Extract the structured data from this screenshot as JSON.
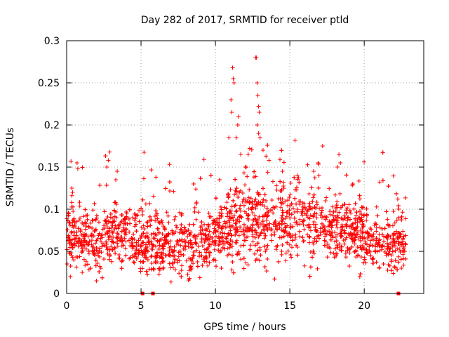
{
  "chart_data": {
    "type": "scatter",
    "title": "Day 282 of 2017, SRMTID for receiver ptld",
    "xlabel": "GPS time / hours",
    "ylabel": "SRMTID / TECUs",
    "xlim": [
      0,
      24
    ],
    "ylim": [
      0,
      0.3
    ],
    "xticks": [
      0,
      5,
      10,
      15,
      20
    ],
    "xtick_labels": [
      "0",
      "5",
      "10",
      "15",
      "20"
    ],
    "yticks": [
      0,
      0.05,
      0.1,
      0.15,
      0.2,
      0.25,
      0.3
    ],
    "ytick_labels": [
      "0",
      "0.05",
      "0.1",
      "0.15",
      "0.2",
      "0.25",
      "0.3"
    ],
    "grid": true,
    "marker": "+",
    "series_color": "#ff0000",
    "x_range_data": [
      0,
      22.8
    ],
    "baseline_trend": [
      [
        0,
        0.072
      ],
      [
        1,
        0.068
      ],
      [
        2,
        0.06
      ],
      [
        3,
        0.072
      ],
      [
        4,
        0.07
      ],
      [
        5,
        0.06
      ],
      [
        6,
        0.058
      ],
      [
        7,
        0.058
      ],
      [
        8,
        0.055
      ],
      [
        9,
        0.06
      ],
      [
        10,
        0.07
      ],
      [
        11,
        0.08
      ],
      [
        12,
        0.085
      ],
      [
        13,
        0.088
      ],
      [
        14,
        0.09
      ],
      [
        15,
        0.09
      ],
      [
        16,
        0.085
      ],
      [
        17,
        0.08
      ],
      [
        18,
        0.078
      ],
      [
        19,
        0.072
      ],
      [
        20,
        0.07
      ],
      [
        21,
        0.06
      ],
      [
        22,
        0.058
      ],
      [
        22.8,
        0.06
      ]
    ],
    "peak_points": [
      [
        0.35,
        0.125
      ],
      [
        0.4,
        0.12
      ],
      [
        0.7,
        0.155
      ],
      [
        0.75,
        0.148
      ],
      [
        2.9,
        0.168
      ],
      [
        2.8,
        0.158
      ],
      [
        2.7,
        0.15
      ],
      [
        3.4,
        0.145
      ],
      [
        3.3,
        0.135
      ],
      [
        6.0,
        0.138
      ],
      [
        10.9,
        0.185
      ],
      [
        11.05,
        0.23
      ],
      [
        11.1,
        0.215
      ],
      [
        11.15,
        0.268
      ],
      [
        11.2,
        0.255
      ],
      [
        11.25,
        0.25
      ],
      [
        11.5,
        0.2
      ],
      [
        11.55,
        0.21
      ],
      [
        11.4,
        0.185
      ],
      [
        12.2,
        0.165
      ],
      [
        12.3,
        0.172
      ],
      [
        12.7,
        0.28
      ],
      [
        12.75,
        0.28
      ],
      [
        12.8,
        0.25
      ],
      [
        12.85,
        0.235
      ],
      [
        12.9,
        0.222
      ],
      [
        12.95,
        0.215
      ],
      [
        12.8,
        0.2
      ],
      [
        12.9,
        0.19
      ],
      [
        13.0,
        0.185
      ],
      [
        13.2,
        0.17
      ],
      [
        13.4,
        0.163
      ],
      [
        13.6,
        0.158
      ],
      [
        14.5,
        0.145
      ],
      [
        15.5,
        0.14
      ],
      [
        16.6,
        0.145
      ],
      [
        16.9,
        0.155
      ],
      [
        17.2,
        0.175
      ],
      [
        18.3,
        0.165
      ],
      [
        18.4,
        0.155
      ],
      [
        18.2,
        0.15
      ]
    ],
    "zero_points": [
      [
        5.1,
        0.0
      ],
      [
        5.8,
        0.0
      ],
      [
        22.3,
        0.0
      ]
    ],
    "low_points": [
      [
        0.25,
        0.02
      ],
      [
        1.05,
        0.025
      ],
      [
        2.0,
        0.015
      ],
      [
        2.3,
        0.03
      ],
      [
        7.7,
        0.02
      ],
      [
        8.4,
        0.03
      ],
      [
        10.4,
        0.03
      ],
      [
        11.1,
        0.028
      ],
      [
        19.7,
        0.02
      ],
      [
        21.0,
        0.03
      ],
      [
        22.5,
        0.03
      ]
    ]
  }
}
